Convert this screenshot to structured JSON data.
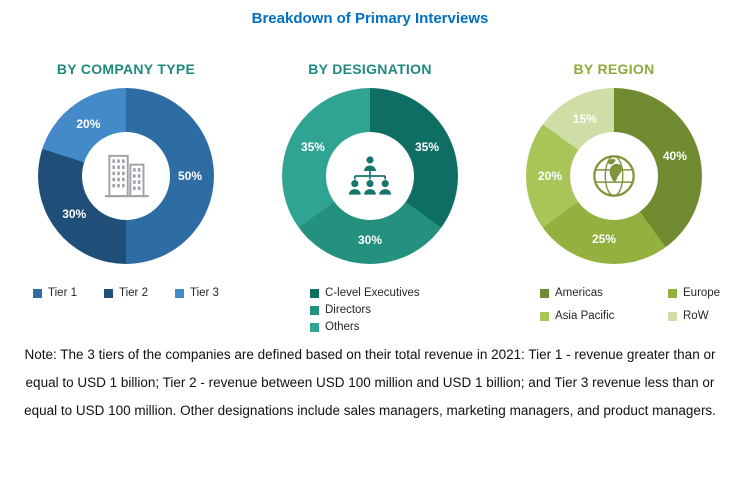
{
  "page_title": "Breakdown of Primary Interviews",
  "note": "Note: The 3 tiers of the companies are defined based on their total revenue in 2021: Tier 1 - revenue greater than or equal to USD 1 billion; Tier 2 - revenue between USD 100 million and USD 1 billion; and Tier 3 revenue less than or equal to USD 100 million. Other designations include sales managers, marketing managers, and product managers.",
  "colors": {
    "title_blue": "#0070C0",
    "heading_teal": "#1E8A7D",
    "heading_olive": "#8FA93C",
    "label_text": "#FFFFFF",
    "note_text": "#111111"
  },
  "chart_data": [
    {
      "type": "pie",
      "variant": "donut",
      "title": "BY COMPANY TYPE",
      "title_color": "#1E8A7D",
      "center_icon": "buildings-icon",
      "legend_position": "bottom-row",
      "labels_format": "percent",
      "start_angle_deg": 0,
      "direction": "clockwise",
      "series": [
        {
          "name": "Tier 1",
          "value": 50,
          "color": "#2E6DA4"
        },
        {
          "name": "Tier 2",
          "value": 30,
          "color": "#1F4E79"
        },
        {
          "name": "Tier 3",
          "value": 20,
          "color": "#4489C8"
        }
      ]
    },
    {
      "type": "pie",
      "variant": "donut",
      "title": "BY DESIGNATION",
      "title_color": "#1E8A7D",
      "center_icon": "org-chart-icon",
      "legend_position": "bottom-column",
      "labels_format": "percent",
      "start_angle_deg": 0,
      "direction": "clockwise",
      "series": [
        {
          "name": "C-level Executives",
          "value": 35,
          "color": "#0F6E64"
        },
        {
          "name": "Directors",
          "value": 30,
          "color": "#23917E"
        },
        {
          "name": "Others",
          "value": 35,
          "color": "#2FA493"
        }
      ]
    },
    {
      "type": "pie",
      "variant": "donut",
      "title": "BY REGION",
      "title_color": "#8FA93C",
      "center_icon": "globe-icon",
      "legend_position": "bottom-grid",
      "labels_format": "percent",
      "start_angle_deg": 0,
      "direction": "clockwise",
      "series": [
        {
          "name": "Americas",
          "value": 40,
          "color": "#6F8A2F"
        },
        {
          "name": "Europe",
          "value": 25,
          "color": "#94B03F"
        },
        {
          "name": "Asia Pacific",
          "value": 20,
          "color": "#A9C457"
        },
        {
          "name": "RoW",
          "value": 15,
          "color": "#CFDDA7"
        }
      ]
    }
  ]
}
